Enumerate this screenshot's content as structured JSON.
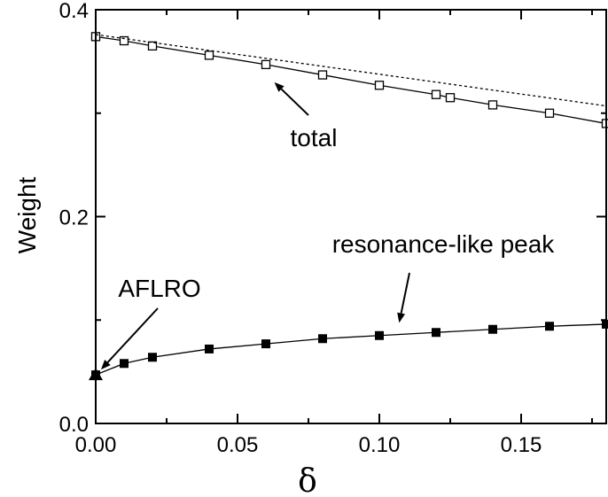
{
  "chart_data": {
    "type": "line",
    "xlabel": "δ",
    "ylabel": "Weight",
    "xlim": [
      0.0,
      0.18
    ],
    "ylim": [
      0.0,
      0.4
    ],
    "xticks": [
      "0.00",
      "0.05",
      "0.10",
      "0.15"
    ],
    "xtick_values": [
      0.0,
      0.05,
      0.1,
      0.15
    ],
    "yticks": [
      "0.0",
      "0.2",
      "0.4"
    ],
    "ytick_values": [
      0.0,
      0.2,
      0.4
    ],
    "grid": false,
    "series": [
      {
        "marker": "open-square",
        "line": "solid",
        "x": [
          0.0,
          0.01,
          0.02,
          0.04,
          0.06,
          0.08,
          0.1,
          0.12,
          0.125,
          0.14,
          0.16,
          0.18
        ],
        "y": [
          0.374,
          0.37,
          0.365,
          0.356,
          0.347,
          0.337,
          0.327,
          0.318,
          0.315,
          0.308,
          0.3,
          0.29
        ]
      },
      {
        "marker": "none",
        "line": "dotted",
        "x": [
          0.0,
          0.18
        ],
        "y": [
          0.376,
          0.307
        ]
      },
      {
        "marker": "filled-square",
        "line": "solid",
        "x": [
          0.0,
          0.01,
          0.02,
          0.04,
          0.06,
          0.08,
          0.1,
          0.12,
          0.14,
          0.16,
          0.18
        ],
        "y": [
          0.047,
          0.058,
          0.064,
          0.072,
          0.077,
          0.082,
          0.085,
          0.088,
          0.091,
          0.094,
          0.096
        ]
      },
      {
        "marker": "filled-triangle",
        "line": "none",
        "x": [
          0.0
        ],
        "y": [
          0.047
        ]
      }
    ],
    "annotations": [
      {
        "text": "total",
        "target_x": 0.063,
        "target_y": 0.335
      },
      {
        "text": "resonance-like peak",
        "target_x": 0.107,
        "target_y": 0.087
      },
      {
        "text": "AFLRO",
        "target_x": 0.0,
        "target_y": 0.047
      }
    ],
    "colors": {
      "line": "#000000",
      "background": "#ffffff"
    }
  }
}
